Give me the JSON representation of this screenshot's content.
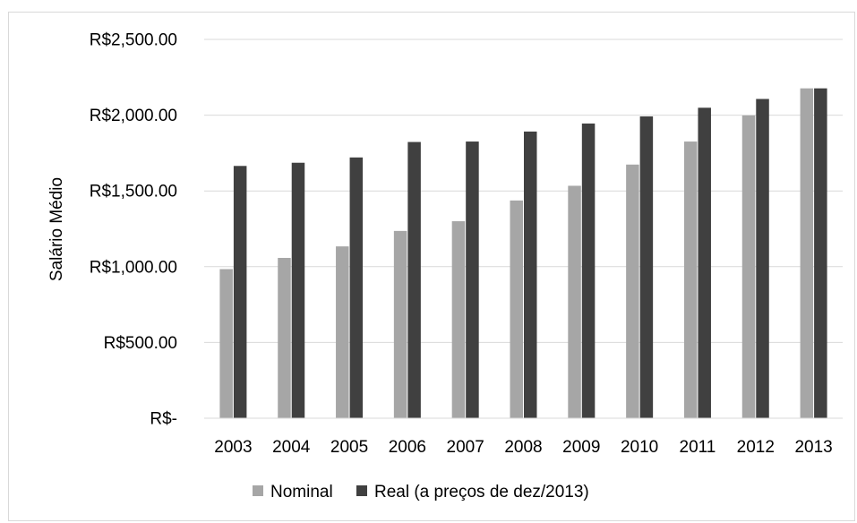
{
  "chart_data": {
    "type": "bar",
    "categories": [
      "2003",
      "2004",
      "2005",
      "2006",
      "2007",
      "2008",
      "2009",
      "2010",
      "2011",
      "2012",
      "2013"
    ],
    "series": [
      {
        "name": "Nominal",
        "color": "#a6a6a6",
        "values": [
          984,
          1058,
          1134,
          1236,
          1300,
          1437,
          1534,
          1674,
          1826,
          1998,
          2177
        ]
      },
      {
        "name": "Real (a preços de dez/2013)",
        "color": "#404040",
        "values": [
          1665,
          1686,
          1721,
          1823,
          1826,
          1892,
          1945,
          1992,
          2049,
          2107,
          2177
        ]
      }
    ],
    "title": "",
    "xlabel": "",
    "ylabel": "Salário Médio",
    "ylim": [
      0,
      2500
    ],
    "yticks": [
      {
        "value": 0,
        "label": "R$-"
      },
      {
        "value": 500,
        "label": "R$500.00"
      },
      {
        "value": 1000,
        "label": "R$1,000.00"
      },
      {
        "value": 1500,
        "label": "R$1,500.00"
      },
      {
        "value": 2000,
        "label": "R$2,000.00"
      },
      {
        "value": 2500,
        "label": "R$2,500.00"
      }
    ],
    "grid": true,
    "gridline_color": "#d9d9d9",
    "legend_position": "bottom"
  }
}
